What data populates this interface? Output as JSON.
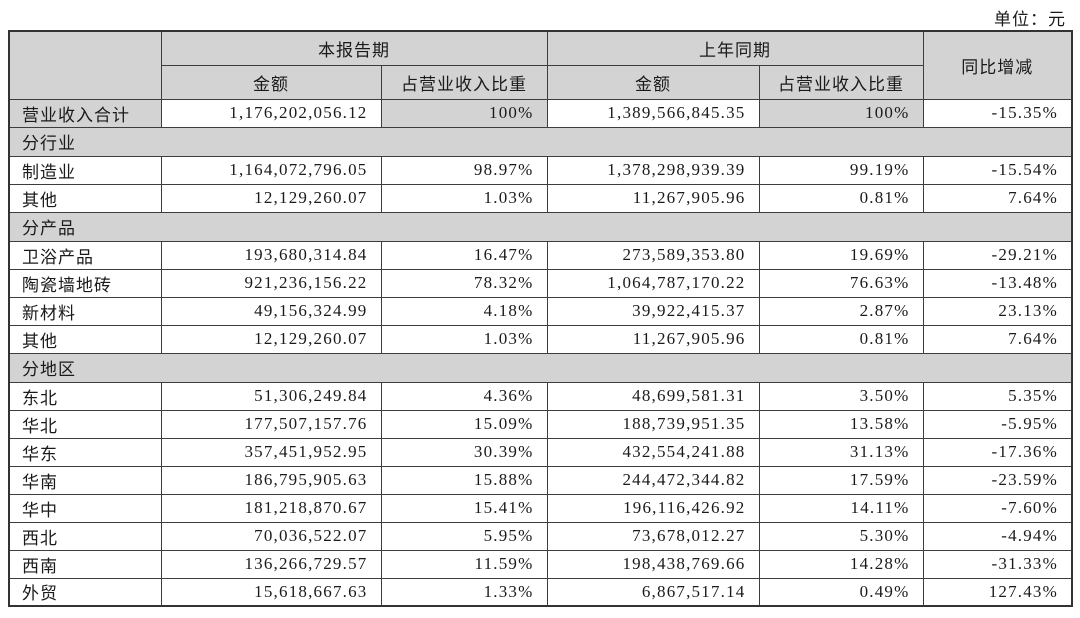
{
  "unit_label": "单位：元",
  "colors": {
    "header_bg": "#d3d3d3",
    "border": "#3d3d3d",
    "row_bg": "#ffffff"
  },
  "table": {
    "header": {
      "corner": "",
      "current_period": "本报告期",
      "prior_period": "上年同期",
      "yoy": "同比增减",
      "amount": "金额",
      "pct": "占营业收入比重"
    },
    "total_row": {
      "label": "营业收入合计",
      "cur_amount": "1,176,202,056.12",
      "cur_pct": "100%",
      "prior_amount": "1,389,566,845.35",
      "prior_pct": "100%",
      "yoy": "-15.35%"
    },
    "sections": [
      {
        "title": "分行业",
        "rows": [
          {
            "label": "制造业",
            "cur_amount": "1,164,072,796.05",
            "cur_pct": "98.97%",
            "prior_amount": "1,378,298,939.39",
            "prior_pct": "99.19%",
            "yoy": "-15.54%"
          },
          {
            "label": "其他",
            "cur_amount": "12,129,260.07",
            "cur_pct": "1.03%",
            "prior_amount": "11,267,905.96",
            "prior_pct": "0.81%",
            "yoy": "7.64%"
          }
        ]
      },
      {
        "title": "分产品",
        "rows": [
          {
            "label": "卫浴产品",
            "cur_amount": "193,680,314.84",
            "cur_pct": "16.47%",
            "prior_amount": "273,589,353.80",
            "prior_pct": "19.69%",
            "yoy": "-29.21%"
          },
          {
            "label": "陶瓷墙地砖",
            "cur_amount": "921,236,156.22",
            "cur_pct": "78.32%",
            "prior_amount": "1,064,787,170.22",
            "prior_pct": "76.63%",
            "yoy": "-13.48%"
          },
          {
            "label": "新材料",
            "cur_amount": "49,156,324.99",
            "cur_pct": "4.18%",
            "prior_amount": "39,922,415.37",
            "prior_pct": "2.87%",
            "yoy": "23.13%"
          },
          {
            "label": "其他",
            "cur_amount": "12,129,260.07",
            "cur_pct": "1.03%",
            "prior_amount": "11,267,905.96",
            "prior_pct": "0.81%",
            "yoy": "7.64%"
          }
        ]
      },
      {
        "title": "分地区",
        "rows": [
          {
            "label": "东北",
            "cur_amount": "51,306,249.84",
            "cur_pct": "4.36%",
            "prior_amount": "48,699,581.31",
            "prior_pct": "3.50%",
            "yoy": "5.35%"
          },
          {
            "label": "华北",
            "cur_amount": "177,507,157.76",
            "cur_pct": "15.09%",
            "prior_amount": "188,739,951.35",
            "prior_pct": "13.58%",
            "yoy": "-5.95%"
          },
          {
            "label": "华东",
            "cur_amount": "357,451,952.95",
            "cur_pct": "30.39%",
            "prior_amount": "432,554,241.88",
            "prior_pct": "31.13%",
            "yoy": "-17.36%"
          },
          {
            "label": "华南",
            "cur_amount": "186,795,905.63",
            "cur_pct": "15.88%",
            "prior_amount": "244,472,344.82",
            "prior_pct": "17.59%",
            "yoy": "-23.59%"
          },
          {
            "label": "华中",
            "cur_amount": "181,218,870.67",
            "cur_pct": "15.41%",
            "prior_amount": "196,116,426.92",
            "prior_pct": "14.11%",
            "yoy": "-7.60%"
          },
          {
            "label": "西北",
            "cur_amount": "70,036,522.07",
            "cur_pct": "5.95%",
            "prior_amount": "73,678,012.27",
            "prior_pct": "5.30%",
            "yoy": "-4.94%"
          },
          {
            "label": "西南",
            "cur_amount": "136,266,729.57",
            "cur_pct": "11.59%",
            "prior_amount": "198,438,769.66",
            "prior_pct": "14.28%",
            "yoy": "-31.33%"
          },
          {
            "label": "外贸",
            "cur_amount": "15,618,667.63",
            "cur_pct": "1.33%",
            "prior_amount": "6,867,517.14",
            "prior_pct": "0.49%",
            "yoy": "127.43%"
          }
        ]
      }
    ]
  }
}
